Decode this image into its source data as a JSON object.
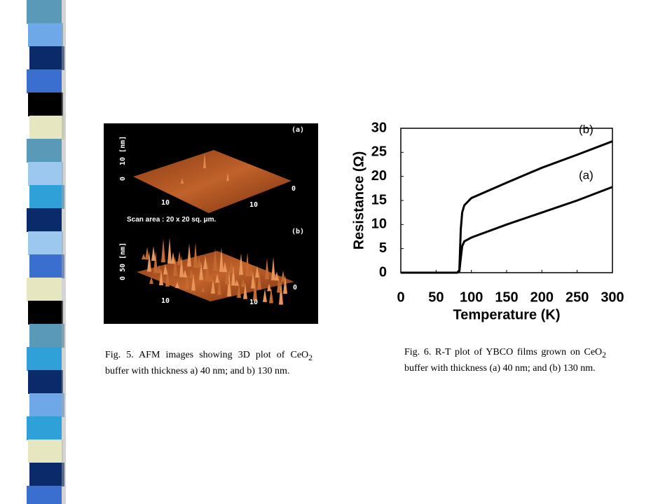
{
  "chart_data": {
    "type": "line",
    "x_label": "Temperature (K)",
    "y_label": "Resistance (Ω)",
    "x": [
      0,
      80,
      83,
      85,
      87,
      90,
      100,
      150,
      200,
      250,
      300
    ],
    "series": [
      {
        "name": "(b)",
        "color": "#000000",
        "values": [
          0,
          0,
          0.5,
          9,
          12.5,
          14,
          15.5,
          18.7,
          21.8,
          24.5,
          27.3
        ]
      },
      {
        "name": "(a)",
        "color": "#000000",
        "values": [
          0,
          0,
          0.3,
          3,
          5.5,
          6.5,
          7.3,
          10,
          12.5,
          15,
          17.8
        ]
      }
    ],
    "xlim": [
      0,
      300
    ],
    "xticks": [
      0,
      50,
      100,
      150,
      200,
      250,
      300
    ],
    "ylim": [
      0,
      30
    ],
    "yticks": [
      0,
      5,
      10,
      15,
      20,
      25,
      30
    ],
    "grid": false
  },
  "afm": {
    "panel_a": "(a)",
    "panel_b": "(b)",
    "scan_area": "Scan area : 20 x 20 sq. μm.",
    "a_z0": "0",
    "a_z": "10 [nm]",
    "a_x1": "10",
    "a_x2": "10",
    "a_x0": "0",
    "b_z": "0 50 [nm]",
    "b_x1": "10",
    "b_x2": "10",
    "b_x0": "0"
  },
  "captions": {
    "fig5": [
      "Fig. 5.  AFM images showing 3D plot of CeO",
      "2",
      " buffer with thickness a) 40 nm; and b) 130 nm."
    ],
    "fig6": [
      "Fig. 6.  R-T plot of YBCO films grown on CeO",
      "2",
      " buffer with thickness (a) 40 nm; and (b) 130 nm."
    ]
  }
}
